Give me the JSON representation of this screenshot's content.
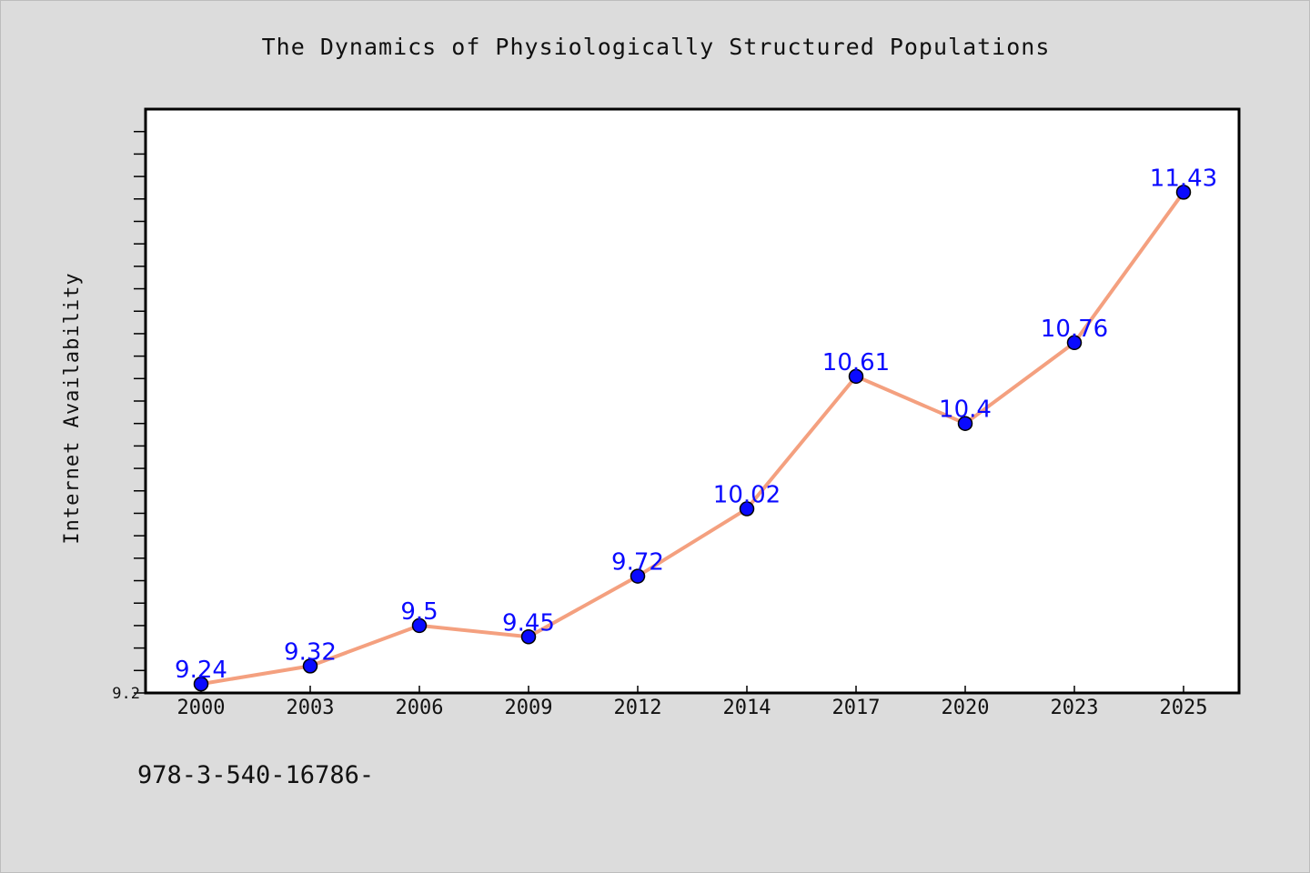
{
  "title": "The Dynamics of Physiologically Structured Populations",
  "footer_text": "978-3-540-16786-",
  "chart_data": {
    "type": "line",
    "title": "The Dynamics of Physiologically Structured Populations",
    "xlabel": "",
    "ylabel": "Internet Availability",
    "categories": [
      "2000",
      "2003",
      "2006",
      "2009",
      "2012",
      "2014",
      "2017",
      "2020",
      "2023",
      "2025"
    ],
    "values": [
      9.24,
      9.32,
      9.5,
      9.45,
      9.72,
      10.02,
      10.61,
      10.4,
      10.76,
      11.43
    ],
    "data_labels": [
      "9.24",
      "9.32",
      "9.5",
      "9.45",
      "9.72",
      "10.02",
      "10.61",
      "10.4",
      "10.76",
      "11.43"
    ],
    "ylim": [
      9.2,
      11.8
    ],
    "y_tick_labels": [
      "9.2"
    ],
    "y_minor_tick_step": 0.1,
    "grid": false,
    "legend": "none",
    "colors": {
      "line": "#f4a07f",
      "marker": "#0a0aff",
      "marker_edge": "#000000",
      "data_label": "#0a0aff",
      "plot_background": "#ffffff",
      "page_background": "#dcdcdc"
    }
  }
}
